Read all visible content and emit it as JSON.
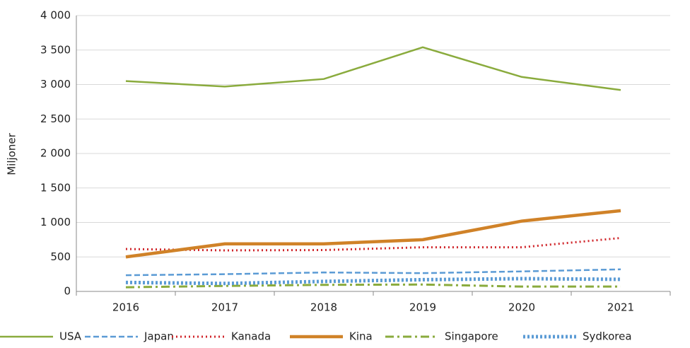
{
  "chart_data": {
    "type": "line",
    "y_label": "Miljoner",
    "categories": [
      "2016",
      "2017",
      "2018",
      "2019",
      "2020",
      "2021"
    ],
    "series": [
      {
        "name": "USA",
        "color": "#8aab3d",
        "dash": "none",
        "width": 2.5,
        "values": [
          3050,
          2970,
          3080,
          3540,
          3110,
          2920
        ]
      },
      {
        "name": "Japan",
        "color": "#5b9bd5",
        "dash": "8,4",
        "width": 2.5,
        "values": [
          235,
          250,
          275,
          265,
          290,
          320
        ]
      },
      {
        "name": "Kanada",
        "color": "#d0262b",
        "dash": "2,4",
        "width": 3,
        "values": [
          615,
          595,
          600,
          640,
          640,
          775
        ]
      },
      {
        "name": "Kina",
        "color": "#d08228",
        "dash": "none",
        "width": 4.5,
        "values": [
          500,
          690,
          690,
          750,
          1020,
          1170
        ]
      },
      {
        "name": "Singapore",
        "color": "#8aab3d",
        "dash": "12,5,3,5",
        "width": 3,
        "values": [
          60,
          80,
          95,
          100,
          70,
          70
        ]
      },
      {
        "name": "Sydkorea",
        "color": "#5b9bd5",
        "dash": "3,3",
        "width": 5,
        "values": [
          130,
          115,
          145,
          170,
          185,
          175
        ]
      }
    ],
    "ylim": [
      0,
      4000
    ],
    "yticks": [
      0,
      500,
      {
        "value": 1000,
        "label": "1 000"
      },
      {
        "value": 1500,
        "label": "1 500"
      },
      {
        "value": 2000,
        "label": "2 000"
      },
      {
        "value": 2500,
        "label": "2 500"
      },
      {
        "value": 3000,
        "label": "3 000"
      },
      {
        "value": 3500,
        "label": "3 500"
      },
      {
        "value": 4000,
        "label": "4 000"
      }
    ],
    "grid": true,
    "legend": "bottom"
  }
}
